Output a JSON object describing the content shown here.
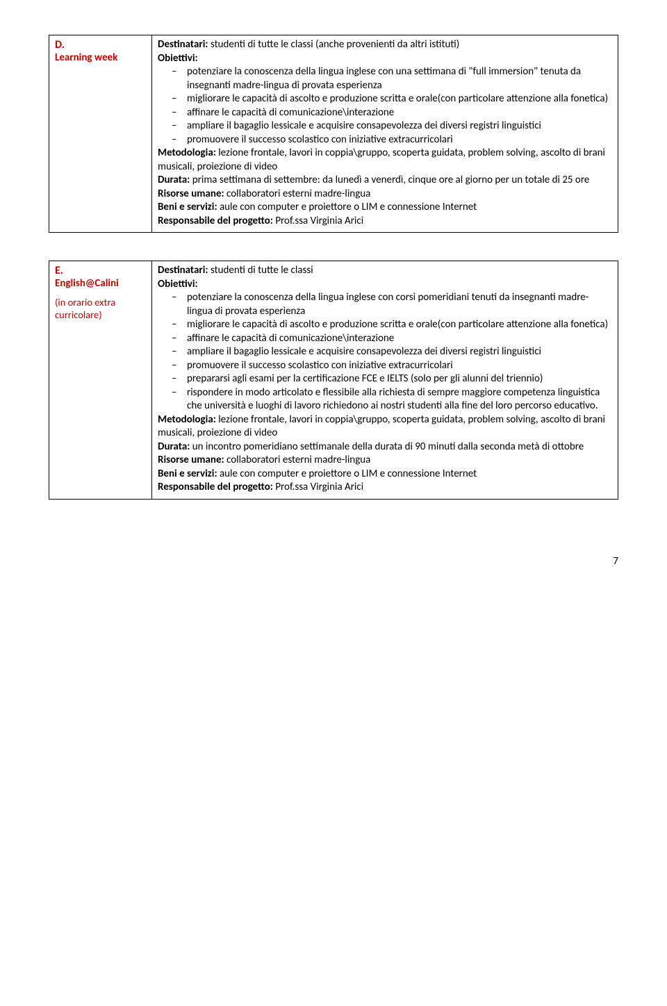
{
  "colors": {
    "accent": "#c00000",
    "text": "#000000",
    "border": "#000000",
    "background": "#ffffff"
  },
  "fonts": {
    "body_family": "Calibri",
    "body_size_pt": 11
  },
  "sectionD": {
    "letter": "D.",
    "name": "Learning week",
    "destinatari_label": "Destinatari:",
    "destinatari_text": " studenti di tutte le classi (anche provenienti da altri istituti)",
    "obiettivi_label": "Obiettivi:",
    "obiettivi": [
      "potenziare la conoscenza della lingua inglese con una settimana di \"full immersion\" tenuta da insegnanti madre-lingua di provata esperienza",
      "migliorare le capacità di ascolto e produzione scritta e orale(con particolare attenzione alla fonetica)",
      "affinare le capacità di comunicazione\\interazione",
      "ampliare il bagaglio lessicale e acquisire consapevolezza dei diversi registri linguistici",
      "promuovere il successo scolastico con iniziative extracurricolari"
    ],
    "metodologia_label": "Metodologia:",
    "metodologia_text": " lezione frontale, lavori in coppia\\gruppo, scoperta guidata, problem  solving, ascolto di brani musicali, proiezione di video",
    "durata_label": "Durata: ",
    "durata_text": " prima settimana di settembre: da lunedì a venerdì, cinque ore al giorno per un totale di 25 ore",
    "risorse_label": "Risorse umane:",
    "risorse_text": " collaboratori esterni madre-lingua",
    "beni_label": "Beni e servizi: ",
    "beni_text": " aule con computer e proiettore o LIM e connessione Internet",
    "resp_label": "Responsabile del progetto:",
    "resp_text": " Prof.ssa  Virginia Arici"
  },
  "sectionE": {
    "letter": "E.",
    "name": "English@Calini",
    "sub": "(in orario extra curricolare)",
    "destinatari_label": "Destinatari: ",
    "destinatari_text": " studenti di tutte le classi",
    "obiettivi_label": "Obiettivi:",
    "obiettivi": [
      "potenziare la conoscenza della lingua inglese con corsi pomeridiani tenuti da insegnanti madre-lingua di provata esperienza",
      "migliorare le capacità di ascolto e produzione scritta e orale(con particolare attenzione alla fonetica)",
      "affinare le capacità di comunicazione\\interazione",
      "ampliare il bagaglio lessicale e acquisire consapevolezza dei diversi registri linguistici",
      "promuovere il successo scolastico con iniziative extracurricolari",
      "prepararsi agli esami per la certificazione FCE e IELTS (solo per gli alunni del triennio)",
      "rispondere in modo articolato e flessibile alla richiesta di sempre maggiore competenza linguistica che università e luoghi di lavoro richiedono ai nostri studenti alla fine del loro percorso educativo."
    ],
    "metodologia_label": "Metodologia: ",
    "metodologia_text": " lezione frontale, lavori in coppia\\gruppo, scoperta guidata, problem  solving, ascolto di brani musicali, proiezione di video",
    "durata_label": "Durata: ",
    "durata_text": " un incontro pomeridiano settimanale della durata di 90 minuti dalla seconda metà di ottobre",
    "risorse_label": "Risorse umane: ",
    "risorse_text": " collaboratori esterni madre-lingua",
    "beni_label": "Beni e servizi: ",
    "beni_text": " aule con computer e proiettore o LIM e connessione Internet",
    "resp_label": "Responsabile del progetto:",
    "resp_text": " Prof.ssa Virginia Arici"
  },
  "page_number": "7"
}
